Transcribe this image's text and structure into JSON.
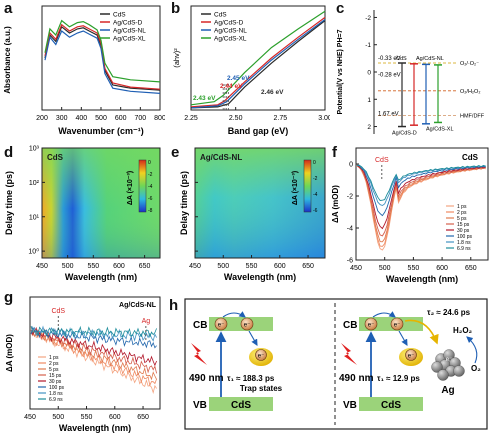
{
  "panel_labels": [
    "a",
    "b",
    "c",
    "d",
    "e",
    "f",
    "g",
    "h"
  ],
  "colors": {
    "cds": "#2b2b2b",
    "ag_d": "#d62728",
    "ag_nl": "#1f5fb4",
    "ag_xl": "#2ca02c",
    "teal": "#1e8d9b"
  },
  "chart_data": [
    {
      "panel": "a",
      "type": "line",
      "xlabel": "Wavenumber (cm⁻¹)",
      "ylabel": "Absorbance (a.u.)",
      "xlim": [
        200,
        800
      ],
      "x_ticks": [
        "200",
        "300",
        "400",
        "500",
        "600",
        "700",
        "800"
      ],
      "legend": [
        "CdS",
        "Ag/CdS-D",
        "Ag/CdS-NL",
        "Ag/CdS-XL"
      ],
      "series": [
        {
          "name": "CdS",
          "color": "#2b2b2b",
          "x": [
            215,
            240,
            270,
            300,
            340,
            380,
            410,
            440,
            480,
            500,
            520,
            560,
            650,
            800
          ],
          "y": [
            0.5,
            0.72,
            0.66,
            0.8,
            0.74,
            0.78,
            0.79,
            0.76,
            0.72,
            0.62,
            0.38,
            0.24,
            0.21,
            0.19
          ]
        },
        {
          "name": "Ag/CdS-D",
          "color": "#d62728",
          "x": [
            215,
            240,
            270,
            300,
            340,
            380,
            410,
            440,
            480,
            500,
            520,
            560,
            650,
            800
          ],
          "y": [
            0.52,
            0.74,
            0.68,
            0.82,
            0.76,
            0.8,
            0.81,
            0.78,
            0.74,
            0.64,
            0.4,
            0.26,
            0.22,
            0.2
          ]
        },
        {
          "name": "Ag/CdS-NL",
          "color": "#1f5fb4",
          "x": [
            215,
            240,
            270,
            300,
            340,
            380,
            410,
            440,
            480,
            500,
            520,
            560,
            650,
            800
          ],
          "y": [
            0.48,
            0.7,
            0.63,
            0.76,
            0.7,
            0.74,
            0.76,
            0.73,
            0.69,
            0.59,
            0.35,
            0.21,
            0.18,
            0.16
          ]
        },
        {
          "name": "Ag/CdS-XL",
          "color": "#2ca02c",
          "x": [
            215,
            240,
            270,
            300,
            340,
            380,
            410,
            440,
            480,
            500,
            520,
            560,
            650,
            800
          ],
          "y": [
            0.55,
            0.78,
            0.72,
            0.86,
            0.8,
            0.84,
            0.85,
            0.82,
            0.77,
            0.67,
            0.45,
            0.32,
            0.29,
            0.27
          ]
        }
      ]
    },
    {
      "panel": "b",
      "type": "line",
      "xlabel": "Band gap (eV)",
      "ylabel": "(ahv)²",
      "xlim": [
        2.25,
        3.0
      ],
      "x_ticks": [
        "2.25",
        "2.50",
        "2.75",
        "3.00"
      ],
      "legend": [
        "CdS",
        "Ag/CdS-D",
        "Ag/CdS-NL",
        "Ag/CdS-XL"
      ],
      "annotations": [
        {
          "text": "2.46 eV",
          "color": "#2b2b2b"
        },
        {
          "text": "2.45 eV",
          "color": "#1f5fb4"
        },
        {
          "text": "2.44 eV",
          "color": "#d62728"
        },
        {
          "text": "2.43 eV",
          "color": "#2ca02c"
        }
      ],
      "series": [
        {
          "name": "CdS",
          "color": "#2b2b2b",
          "x": [
            2.25,
            2.4,
            2.46,
            2.55,
            2.7,
            2.85,
            3.0
          ],
          "y": [
            0.02,
            0.03,
            0.06,
            0.22,
            0.45,
            0.66,
            0.86
          ]
        },
        {
          "name": "Ag/CdS-D",
          "color": "#d62728",
          "x": [
            2.25,
            2.4,
            2.44,
            2.55,
            2.7,
            2.85,
            3.0
          ],
          "y": [
            0.03,
            0.05,
            0.09,
            0.27,
            0.5,
            0.7,
            0.89
          ]
        },
        {
          "name": "Ag/CdS-NL",
          "color": "#1f5fb4",
          "x": [
            2.25,
            2.4,
            2.45,
            2.55,
            2.7,
            2.85,
            3.0
          ],
          "y": [
            0.02,
            0.04,
            0.08,
            0.25,
            0.48,
            0.68,
            0.87
          ]
        },
        {
          "name": "Ag/CdS-XL",
          "color": "#2ca02c",
          "x": [
            2.25,
            2.38,
            2.43,
            2.55,
            2.7,
            2.85,
            3.0
          ],
          "y": [
            0.05,
            0.08,
            0.14,
            0.36,
            0.6,
            0.78,
            0.95
          ]
        }
      ]
    },
    {
      "panel": "c",
      "type": "diagram",
      "ylabel": "Potential(V vs NHE) PH=7",
      "y_ticks": [
        "-2",
        "-1",
        "0",
        "1",
        "2"
      ],
      "levels": [
        {
          "text": "-0.33 eV",
          "value": -0.33
        },
        {
          "text": "-0.28 eV",
          "value": -0.28
        },
        {
          "text": "1.67 eV",
          "value": 1.67
        }
      ],
      "redox": [
        {
          "text": "O₂/·O₂⁻",
          "value": -0.33
        },
        {
          "text": "O₂/H₂O₂",
          "value": 0.69
        },
        {
          "text": "HMF/DFF",
          "value": 1.6
        }
      ],
      "materials": [
        "CdS",
        "Ag/CdS-NL",
        "Ag/CdS-D",
        "Ag/CdS-XL"
      ]
    },
    {
      "panel": "d",
      "type": "heatmap",
      "title": "CdS",
      "xlabel": "Wavelength (nm)",
      "ylabel": "Delay time (ps)",
      "x_ticks": [
        "450",
        "500",
        "550",
        "600",
        "650"
      ],
      "y_ticks": [
        "10⁰",
        "10¹",
        "10²",
        "10³"
      ],
      "colorbar_label": "ΔA (×10⁻³)",
      "colorbar_ticks": [
        "0",
        "-2",
        "-4",
        "-6",
        "-8"
      ]
    },
    {
      "panel": "e",
      "type": "heatmap",
      "title": "Ag/CdS-NL",
      "xlabel": "Wavelength (nm)",
      "ylabel": "Delay time (ps)",
      "x_ticks": [
        "450",
        "500",
        "550",
        "600",
        "650"
      ],
      "y_ticks": [
        "10⁰",
        "10¹",
        "10²",
        "10³"
      ],
      "colorbar_label": "ΔA (×10⁻³)",
      "colorbar_ticks": [
        "0",
        "-2",
        "-4",
        "-6"
      ]
    },
    {
      "panel": "f",
      "type": "line",
      "title": "CdS",
      "marker": "CdS",
      "xlabel": "Wavelength (nm)",
      "ylabel": "ΔA (mOD)",
      "xlim": [
        450,
        680
      ],
      "ylim": [
        -6,
        1
      ],
      "x_ticks": [
        "450",
        "500",
        "550",
        "600",
        "650"
      ],
      "y_ticks": [
        "0",
        "-2",
        "-4",
        "-6"
      ],
      "delays": [
        "1 ps",
        "2 ps",
        "5 ps",
        "15 ps",
        "30 ps",
        "100 ps",
        "1.8 ns",
        "6.9 ns"
      ],
      "min_values": [
        -5.4,
        -5.2,
        -4.9,
        -4.5,
        -4.0,
        -3.2,
        -2.6,
        -2.3
      ]
    },
    {
      "panel": "g",
      "type": "line",
      "title": "Ag/CdS-NL",
      "markers": [
        "CdS",
        "Ag"
      ],
      "xlabel": "Wavelength (nm)",
      "ylabel": "ΔA (mOD)",
      "xlim": [
        450,
        680
      ],
      "x_ticks": [
        "450",
        "500",
        "550",
        "600",
        "650"
      ],
      "delays": [
        "1 ps",
        "2 ps",
        "5 ps",
        "15 ps",
        "30 ps",
        "100 ps",
        "1.8 ns",
        "6.9 ns"
      ]
    }
  ],
  "diagram_h": {
    "left": {
      "cb": "CB",
      "vb": "VB",
      "material": "CdS",
      "wavelength": "490 nm",
      "tau1": "τ₁ ≈ 188.3 ps",
      "trap": "Trap states",
      "electron": "e⁻"
    },
    "right": {
      "cb": "CB",
      "vb": "VB",
      "material": "CdS",
      "wavelength": "490 nm",
      "tau1": "τ₁ ≈ 12.9 ps",
      "tau2": "τ₂ ≈ 24.6 ps",
      "metal": "Ag",
      "h2o2": "H₂O₂",
      "o2": "O₂",
      "electron": "e⁻"
    }
  }
}
